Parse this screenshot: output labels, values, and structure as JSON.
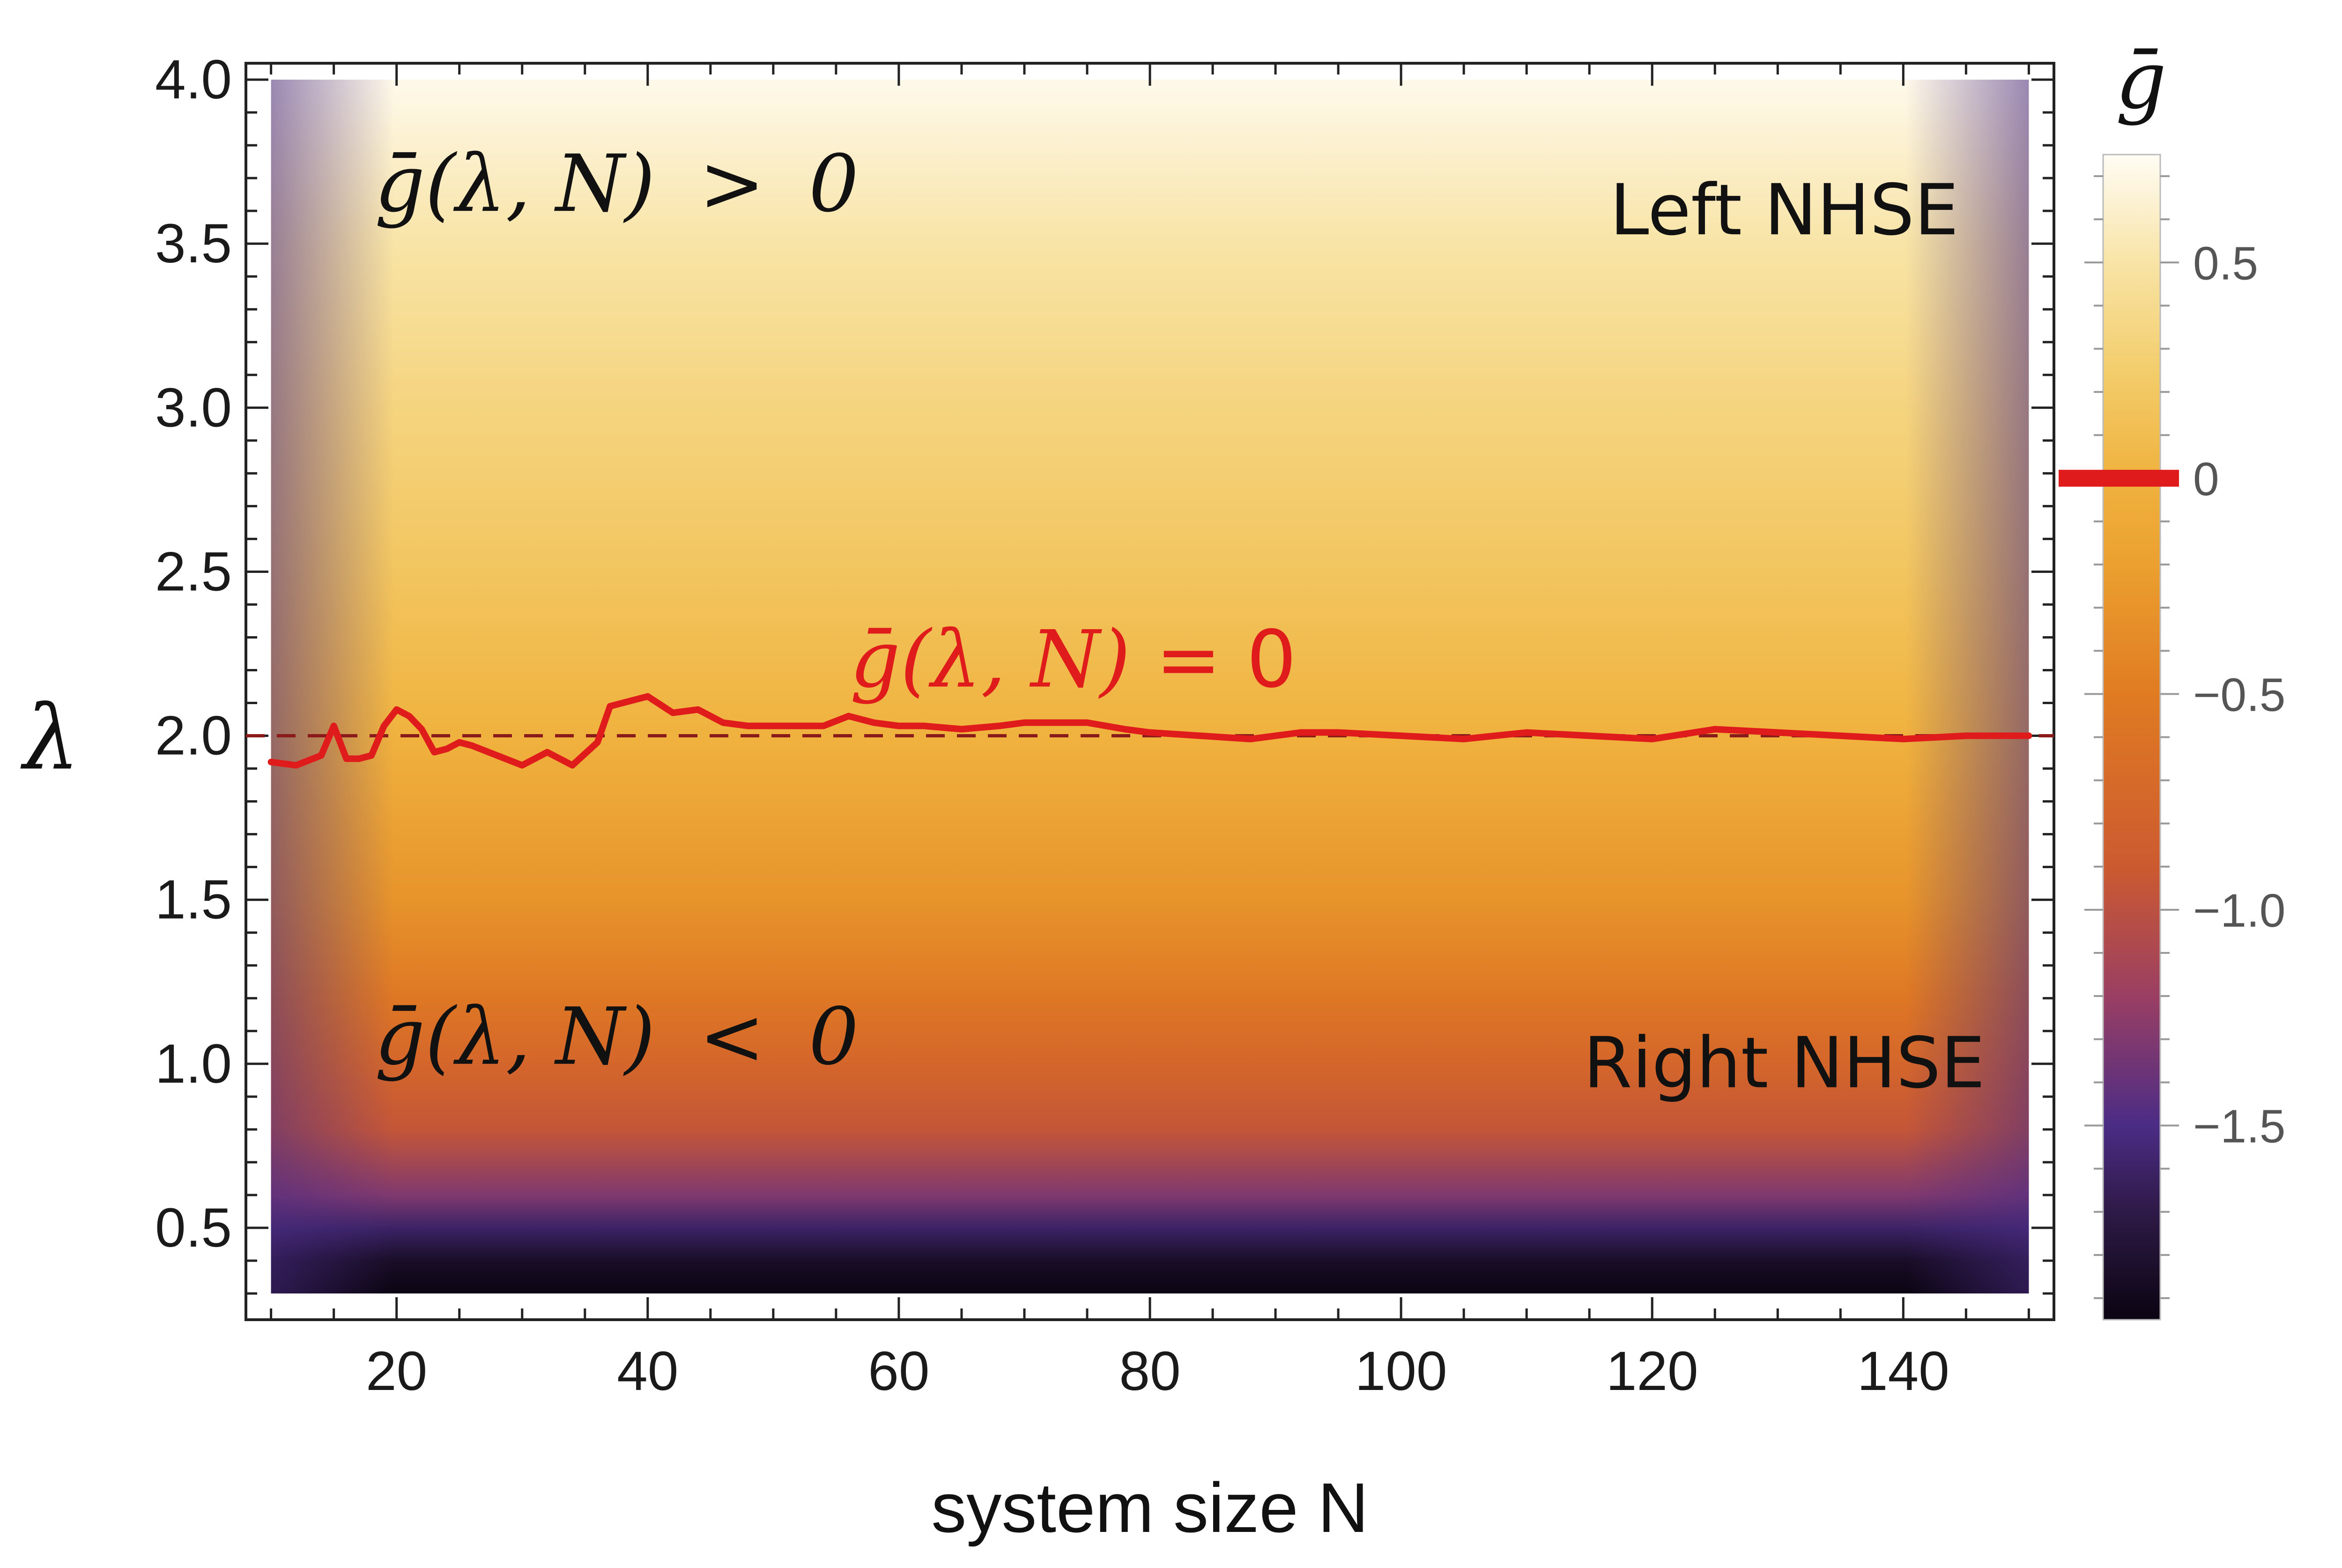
{
  "chart_data": {
    "type": "heatmap",
    "xlabel": "system size N",
    "ylabel": "λ",
    "xlim": [
      8,
      152
    ],
    "ylim": [
      0.22,
      4.05
    ],
    "data_x_range": [
      10,
      150
    ],
    "data_y_range": [
      0.3,
      4.0
    ],
    "x_ticks": [
      20,
      40,
      60,
      80,
      100,
      120,
      140
    ],
    "y_ticks": [
      0.5,
      1.0,
      1.5,
      2.0,
      2.5,
      3.0,
      3.5,
      4.0
    ],
    "x_tick_labels": [
      "20",
      "40",
      "60",
      "80",
      "100",
      "120",
      "140"
    ],
    "y_tick_labels": [
      "0.5",
      "1.0",
      "1.5",
      "2.0",
      "2.5",
      "3.0",
      "3.5",
      "4.0"
    ],
    "colorbar": {
      "title": "ḡ",
      "range": [
        -1.95,
        0.75
      ],
      "ticks": [
        0.5,
        0,
        -0.5,
        -1.0,
        -1.5
      ],
      "tick_labels": [
        "0.5",
        "0",
        "−0.5",
        "−1.0",
        "−1.5"
      ],
      "marker_value": 0,
      "marker_color": "#e01b1b",
      "stops": [
        {
          "value": -1.95,
          "color": "#0b0411"
        },
        {
          "value": -1.7,
          "color": "#2e1a47"
        },
        {
          "value": -1.5,
          "color": "#4b2c85"
        },
        {
          "value": -1.2,
          "color": "#9a3f63"
        },
        {
          "value": -0.9,
          "color": "#cc5a30"
        },
        {
          "value": -0.5,
          "color": "#e07b22"
        },
        {
          "value": -0.2,
          "color": "#eba02f"
        },
        {
          "value": 0.0,
          "color": "#f0b23e"
        },
        {
          "value": 0.25,
          "color": "#f3cd6c"
        },
        {
          "value": 0.5,
          "color": "#f8e4a6"
        },
        {
          "value": 0.75,
          "color": "#fffcf4"
        }
      ]
    },
    "field_profile": {
      "lambda": [
        0.3,
        0.4,
        0.5,
        0.6,
        0.8,
        1.0,
        1.2,
        1.5,
        2.0,
        2.5,
        3.0,
        3.5,
        4.0
      ],
      "g": [
        -1.95,
        -1.85,
        -1.6,
        -1.3,
        -0.95,
        -0.75,
        -0.55,
        -0.3,
        0.0,
        0.18,
        0.33,
        0.5,
        0.72
      ]
    },
    "reference_line": {
      "y": 2.0,
      "style": "dashed",
      "color": "#8b1a1a"
    },
    "series": [
      {
        "name": "ḡ(λ, N)=0",
        "color": "#e01b1b",
        "x": [
          10,
          12,
          14,
          15,
          16,
          17,
          18,
          19,
          20,
          21,
          22,
          23,
          24,
          25,
          26,
          28,
          30,
          32,
          34,
          36,
          37,
          38,
          39,
          40,
          42,
          44,
          46,
          48,
          50,
          52,
          54,
          56,
          58,
          60,
          62,
          65,
          68,
          70,
          72,
          75,
          78,
          80,
          84,
          88,
          92,
          95,
          100,
          105,
          110,
          115,
          120,
          125,
          130,
          135,
          140,
          145,
          150
        ],
        "y": [
          1.92,
          1.91,
          1.94,
          2.03,
          1.93,
          1.93,
          1.94,
          2.03,
          2.08,
          2.06,
          2.02,
          1.95,
          1.96,
          1.98,
          1.97,
          1.94,
          1.91,
          1.95,
          1.91,
          1.98,
          2.09,
          2.1,
          2.11,
          2.12,
          2.07,
          2.08,
          2.04,
          2.03,
          2.03,
          2.03,
          2.03,
          2.06,
          2.04,
          2.03,
          2.03,
          2.02,
          2.03,
          2.04,
          2.04,
          2.04,
          2.02,
          2.01,
          2.0,
          1.99,
          2.01,
          2.01,
          2.0,
          1.99,
          2.01,
          2.0,
          1.99,
          2.02,
          2.01,
          2.0,
          1.99,
          2.0,
          2.0
        ]
      }
    ],
    "annotations": [
      {
        "id": "upper-condition",
        "lhs": "ḡ(λ, N)",
        "op": ">",
        "rhs": "0",
        "x": 30,
        "y": 3.6
      },
      {
        "id": "lower-condition",
        "lhs": "ḡ(λ, N)",
        "op": "<",
        "rhs": "0",
        "x": 30,
        "y": 1.0
      },
      {
        "id": "zero-contour-label",
        "lhs": "ḡ(λ, N)",
        "op": "=",
        "rhs": "0",
        "x": 77,
        "y": 2.15
      },
      {
        "id": "left-nhse",
        "text": "Left NHSE",
        "x": 135,
        "y": 3.6
      },
      {
        "id": "right-nhse",
        "text": "Right NHSE",
        "x": 135,
        "y": 1.0
      }
    ]
  }
}
